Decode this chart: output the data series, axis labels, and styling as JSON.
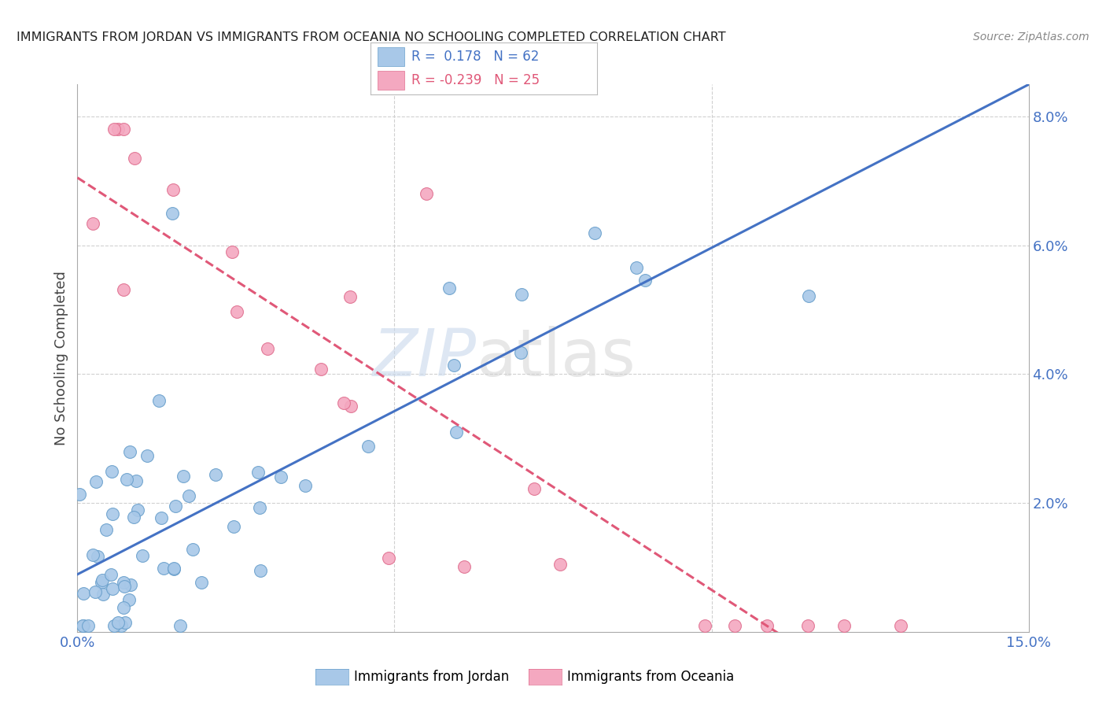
{
  "title": "IMMIGRANTS FROM JORDAN VS IMMIGRANTS FROM OCEANIA NO SCHOOLING COMPLETED CORRELATION CHART",
  "source": "Source: ZipAtlas.com",
  "ylabel": "No Schooling Completed",
  "xlim": [
    0.0,
    0.15
  ],
  "ylim": [
    0.0,
    0.085
  ],
  "jordan_R": 0.178,
  "jordan_N": 62,
  "oceania_R": -0.239,
  "oceania_N": 25,
  "jordan_color": "#a8c8e8",
  "jordan_edge_color": "#6aa0cc",
  "jordan_line_color": "#4472c4",
  "oceania_color": "#f4a8c0",
  "oceania_edge_color": "#e07090",
  "oceania_line_color": "#e05878",
  "background_color": "#ffffff",
  "grid_color": "#d0d0d0",
  "title_color": "#222222",
  "source_color": "#888888",
  "tick_color": "#4472c4",
  "ylabel_color": "#444444",
  "watermark_zip_color": "#c8d8ec",
  "watermark_atlas_color": "#d0d0d0"
}
